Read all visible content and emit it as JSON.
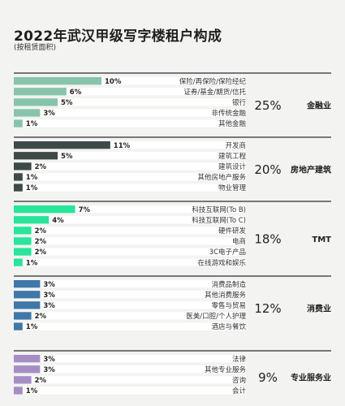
{
  "chart_data": {
    "type": "bar",
    "title": "2022年武汉甲级写字楼租户构成",
    "subtitle": "(按租赁面积)",
    "unit": "%",
    "groups": [
      {
        "name": "金融业",
        "total": "25%",
        "color": "#86c4ab",
        "categories": [
          "保险/再保险/保险经纪",
          "证券/基金/期货/信托",
          "银行",
          "非传统金融",
          "其他金融"
        ],
        "values": [
          10,
          6,
          5,
          3,
          1
        ]
      },
      {
        "name": "房地产建筑",
        "total": "20%",
        "color": "#3d4a48",
        "categories": [
          "开发商",
          "建筑工程",
          "建筑设计",
          "其他房地产服务",
          "物业管理"
        ],
        "values": [
          11,
          5,
          2,
          1,
          1
        ]
      },
      {
        "name": "TMT",
        "total": "18%",
        "color": "#27e59a",
        "categories": [
          "科技互联网(To B)",
          "科技互联网(To C)",
          "硬件研发",
          "电商",
          "3C电子产品",
          "在线游戏和娱乐"
        ],
        "values": [
          7,
          4,
          2,
          2,
          2,
          1
        ]
      },
      {
        "name": "消费业",
        "total": "12%",
        "color": "#3f77a8",
        "categories": [
          "消费品制造",
          "其他消费服务",
          "零售与贸易",
          "医美/口腔/个人护理",
          "酒店与餐饮"
        ],
        "values": [
          3,
          3,
          3,
          2,
          1
        ]
      },
      {
        "name": "专业服务业",
        "total": "9%",
        "color": "#a68ec5",
        "categories": [
          "法律",
          "其他专业服务",
          "咨询",
          "会计"
        ],
        "values": [
          3,
          3,
          2,
          1
        ]
      }
    ]
  }
}
